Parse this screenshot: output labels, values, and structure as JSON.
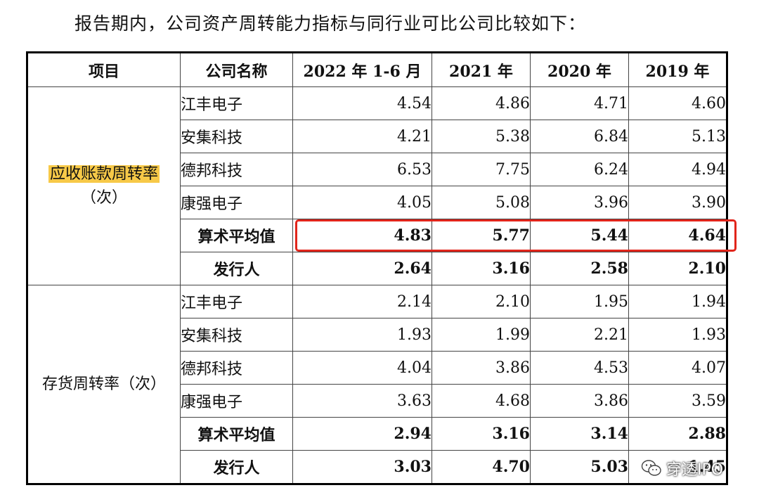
{
  "intro": "报告期内，公司资产周转能力指标与同行业可比公司比较如下：",
  "table": {
    "headers": [
      "项目",
      "公司名称",
      "2022 年 1-6 月",
      "2021 年",
      "2020 年",
      "2019 年"
    ],
    "groups": [
      {
        "label_main": "应收账款周转率",
        "label_sub": "（次）",
        "rows": [
          {
            "name": "江丰电子",
            "values": [
              "4.54",
              "4.86",
              "4.71",
              "4.60"
            ]
          },
          {
            "name": "安集科技",
            "values": [
              "4.21",
              "5.38",
              "6.84",
              "5.13"
            ]
          },
          {
            "name": "德邦科技",
            "values": [
              "6.53",
              "7.75",
              "6.24",
              "4.94"
            ]
          },
          {
            "name": "康强电子",
            "values": [
              "4.05",
              "5.08",
              "3.96",
              "3.90"
            ]
          },
          {
            "name": "算术平均值",
            "values": [
              "4.83",
              "5.77",
              "5.44",
              "4.64"
            ]
          },
          {
            "name": "发行人",
            "values": [
              "2.64",
              "3.16",
              "2.58",
              "2.10"
            ]
          }
        ]
      },
      {
        "label_main": "存货周转率（次）",
        "label_sub": "",
        "rows": [
          {
            "name": "江丰电子",
            "values": [
              "2.14",
              "2.10",
              "1.95",
              "1.94"
            ]
          },
          {
            "name": "安集科技",
            "values": [
              "1.93",
              "1.99",
              "2.21",
              "1.93"
            ]
          },
          {
            "name": "德邦科技",
            "values": [
              "4.04",
              "3.86",
              "4.53",
              "4.07"
            ]
          },
          {
            "name": "康强电子",
            "values": [
              "3.63",
              "4.68",
              "3.86",
              "3.59"
            ]
          },
          {
            "name": "算术平均值",
            "values": [
              "2.94",
              "3.16",
              "3.14",
              "2.88"
            ]
          },
          {
            "name": "发行人",
            "values": [
              "3.03",
              "4.70",
              "5.03",
              "1.45"
            ]
          }
        ]
      }
    ]
  },
  "colors": {
    "highlight": "#f7c948",
    "annotation_box": "#e1251b"
  },
  "watermark": {
    "icon": "wechat-icon",
    "text": "穿透IPO"
  }
}
